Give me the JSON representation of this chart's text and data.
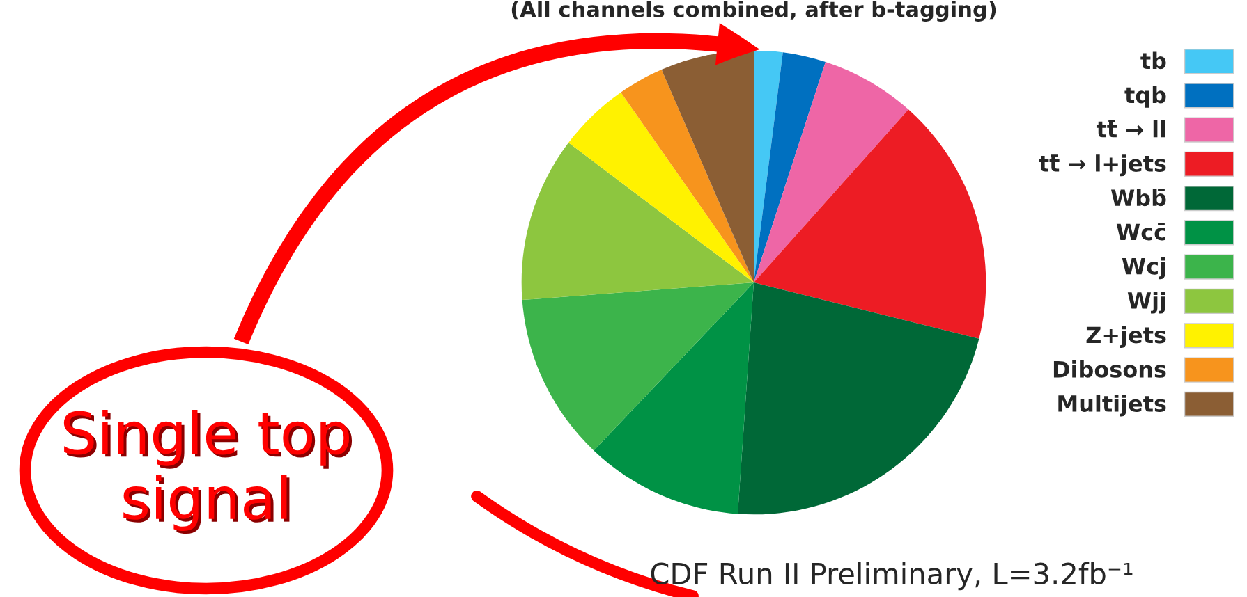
{
  "chart_data": {
    "type": "pie",
    "title": "(All channels combined, after b-tagging)",
    "categories": [
      "tb",
      "tqb",
      "tt̄ → ll",
      "tt̄ → l+jets",
      "Wbb̄",
      "Wcc̄",
      "Wcj",
      "Wjj",
      "Z+jets",
      "Dibosons",
      "Multijets"
    ],
    "values": [
      2.0,
      3.0,
      6.6,
      17.3,
      22.2,
      11.0,
      11.7,
      11.5,
      5.0,
      3.2,
      6.5
    ],
    "colors": [
      "#45c8f5",
      "#0070c0",
      "#ee66a6",
      "#ed1c24",
      "#006837",
      "#009245",
      "#3cb44b",
      "#8dc63f",
      "#fff200",
      "#f7941d",
      "#8b5e34"
    ],
    "legend": "right",
    "annotations": [
      "Single top signal",
      "CDF Run II Preliminary, L=3.2fb⁻¹"
    ]
  }
}
